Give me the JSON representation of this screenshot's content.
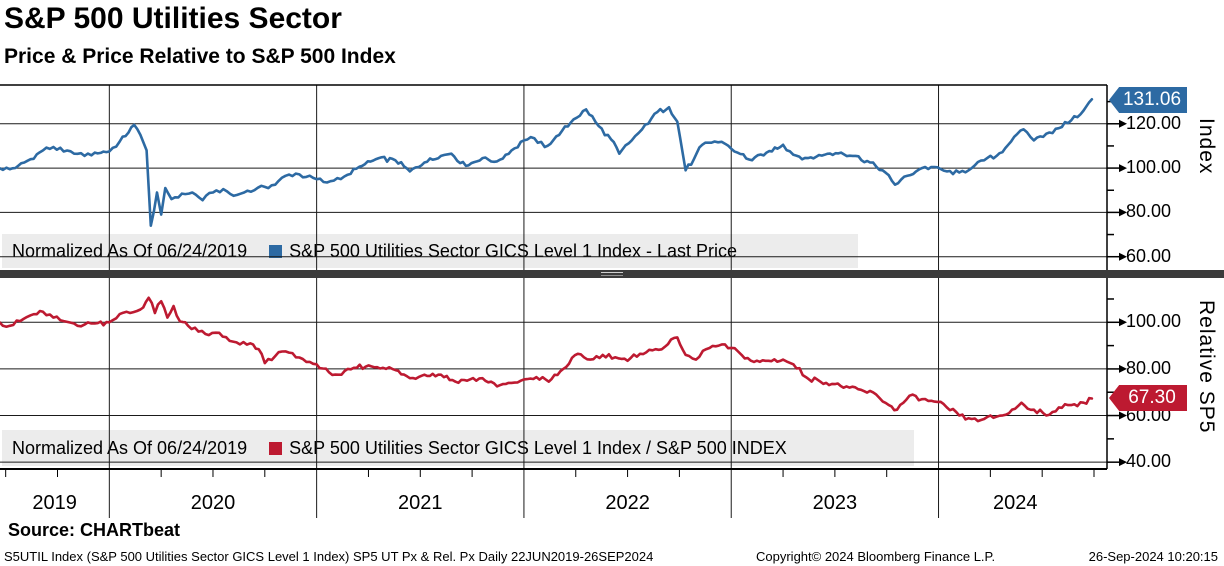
{
  "header": {
    "title": "S&P 500 Utilities Sector",
    "subtitle": "Price & Price Relative to S&P 500 Index"
  },
  "footer": {
    "source": "Source: CHARTbeat",
    "meta_left": "S5UTIL Index (S&P 500 Utilities Sector GICS Level 1 Index) SP5 UT Px & Rel. Px  Daily 22JUN2019-26SEP2024",
    "meta_center": "Copyright© 2024 Bloomberg Finance L.P.",
    "meta_right": "26-Sep-2024 10:20:15"
  },
  "chart_data": {
    "type": "line",
    "x_axis": {
      "start": "22JUN2019",
      "end": "26SEP2024",
      "tick_years": [
        2019,
        2020,
        2021,
        2022,
        2023,
        2024
      ],
      "grid_years": [
        2020,
        2021,
        2022,
        2023,
        2024
      ]
    },
    "panels": [
      {
        "name": "price",
        "axis_title": "Index",
        "legend_note": "Normalized As Of 06/24/2019",
        "series_label": "S&P 500 Utilities Sector GICS Level 1 Index - Last Price",
        "color": "#2d6aa3",
        "last_value": 131.06,
        "last_value_label": "131.06",
        "y_ticks": [
          60,
          80,
          100,
          120
        ],
        "ylim": [
          54,
          137.5
        ],
        "points": [
          [
            2019.47,
            100
          ],
          [
            2019.52,
            99.5
          ],
          [
            2019.56,
            101
          ],
          [
            2019.62,
            104
          ],
          [
            2019.68,
            108
          ],
          [
            2019.73,
            109.5
          ],
          [
            2019.78,
            107.5
          ],
          [
            2019.83,
            106.5
          ],
          [
            2019.88,
            105.5
          ],
          [
            2019.93,
            107
          ],
          [
            2020.0,
            107.5
          ],
          [
            2020.05,
            112
          ],
          [
            2020.12,
            119.5
          ],
          [
            2020.15,
            115
          ],
          [
            2020.18,
            108
          ],
          [
            2020.2,
            74
          ],
          [
            2020.23,
            89
          ],
          [
            2020.25,
            79
          ],
          [
            2020.27,
            91
          ],
          [
            2020.3,
            86
          ],
          [
            2020.35,
            88.5
          ],
          [
            2020.4,
            89
          ],
          [
            2020.45,
            85.5
          ],
          [
            2020.5,
            89
          ],
          [
            2020.55,
            90.5
          ],
          [
            2020.6,
            87.5
          ],
          [
            2020.65,
            89
          ],
          [
            2020.7,
            90
          ],
          [
            2020.75,
            91.5
          ],
          [
            2020.8,
            92.5
          ],
          [
            2020.85,
            96.5
          ],
          [
            2020.9,
            97.5
          ],
          [
            2020.95,
            96
          ],
          [
            2021.0,
            95
          ],
          [
            2021.05,
            93.5
          ],
          [
            2021.1,
            95.5
          ],
          [
            2021.15,
            97
          ],
          [
            2021.22,
            101
          ],
          [
            2021.3,
            104.5
          ],
          [
            2021.38,
            103.5
          ],
          [
            2021.45,
            98.5
          ],
          [
            2021.52,
            102.5
          ],
          [
            2021.6,
            105.5
          ],
          [
            2021.65,
            106.5
          ],
          [
            2021.72,
            101
          ],
          [
            2021.8,
            104.5
          ],
          [
            2021.87,
            103
          ],
          [
            2021.94,
            108
          ],
          [
            2022.0,
            112.5
          ],
          [
            2022.05,
            113.5
          ],
          [
            2022.1,
            109.5
          ],
          [
            2022.17,
            115
          ],
          [
            2022.24,
            122
          ],
          [
            2022.3,
            126.5
          ],
          [
            2022.36,
            119
          ],
          [
            2022.42,
            113
          ],
          [
            2022.46,
            106.5
          ],
          [
            2022.52,
            112.5
          ],
          [
            2022.57,
            117.5
          ],
          [
            2022.63,
            124.5
          ],
          [
            2022.7,
            127.5
          ],
          [
            2022.74,
            121
          ],
          [
            2022.78,
            99
          ],
          [
            2022.82,
            104
          ],
          [
            2022.86,
            110.5
          ],
          [
            2022.92,
            112
          ],
          [
            2022.97,
            111
          ],
          [
            2023.03,
            107
          ],
          [
            2023.1,
            103.5
          ],
          [
            2023.17,
            107
          ],
          [
            2023.25,
            110.5
          ],
          [
            2023.3,
            106
          ],
          [
            2023.37,
            104.5
          ],
          [
            2023.45,
            106
          ],
          [
            2023.53,
            107
          ],
          [
            2023.6,
            105.5
          ],
          [
            2023.67,
            102.5
          ],
          [
            2023.73,
            99
          ],
          [
            2023.79,
            92.5
          ],
          [
            2023.85,
            96.5
          ],
          [
            2023.92,
            100
          ],
          [
            2023.98,
            100.5
          ],
          [
            2024.04,
            98.5
          ],
          [
            2024.1,
            98
          ],
          [
            2024.16,
            100
          ],
          [
            2024.22,
            103.5
          ],
          [
            2024.28,
            105.5
          ],
          [
            2024.35,
            112
          ],
          [
            2024.41,
            117.5
          ],
          [
            2024.46,
            112.5
          ],
          [
            2024.52,
            115.5
          ],
          [
            2024.58,
            118
          ],
          [
            2024.64,
            121.5
          ],
          [
            2024.7,
            126
          ],
          [
            2024.74,
            131.06
          ]
        ]
      },
      {
        "name": "relative",
        "axis_title": "Relative SP5",
        "legend_note": "Normalized As Of 06/24/2019",
        "series_label": "S&P 500 Utilities Sector GICS Level 1 Index / S&P 500 INDEX",
        "color": "#bd1a31",
        "last_value": 67.3,
        "last_value_label": "67.30",
        "y_ticks": [
          40,
          60,
          80,
          100
        ],
        "ylim": [
          37.5,
          119
        ],
        "points": [
          [
            2019.47,
            100
          ],
          [
            2019.52,
            98.5
          ],
          [
            2019.57,
            100.5
          ],
          [
            2019.62,
            103
          ],
          [
            2019.68,
            104.5
          ],
          [
            2019.73,
            102
          ],
          [
            2019.78,
            100.5
          ],
          [
            2019.83,
            99.5
          ],
          [
            2019.88,
            99
          ],
          [
            2019.93,
            99.5
          ],
          [
            2020.0,
            100
          ],
          [
            2020.05,
            103.5
          ],
          [
            2020.1,
            104
          ],
          [
            2020.15,
            105.5
          ],
          [
            2020.19,
            110.5
          ],
          [
            2020.22,
            104
          ],
          [
            2020.25,
            109
          ],
          [
            2020.28,
            102
          ],
          [
            2020.31,
            107
          ],
          [
            2020.34,
            100.5
          ],
          [
            2020.38,
            98.5
          ],
          [
            2020.43,
            96
          ],
          [
            2020.48,
            94.5
          ],
          [
            2020.53,
            95.5
          ],
          [
            2020.58,
            92
          ],
          [
            2020.63,
            90.5
          ],
          [
            2020.68,
            91
          ],
          [
            2020.72,
            88.5
          ],
          [
            2020.75,
            82.5
          ],
          [
            2020.8,
            85.5
          ],
          [
            2020.85,
            87.5
          ],
          [
            2020.9,
            85
          ],
          [
            2020.95,
            83
          ],
          [
            2021.0,
            82
          ],
          [
            2021.06,
            78.5
          ],
          [
            2021.12,
            77.5
          ],
          [
            2021.18,
            80.5
          ],
          [
            2021.25,
            81.5
          ],
          [
            2021.32,
            80.5
          ],
          [
            2021.38,
            79.5
          ],
          [
            2021.45,
            76
          ],
          [
            2021.52,
            77.5
          ],
          [
            2021.6,
            77.5
          ],
          [
            2021.67,
            74.5
          ],
          [
            2021.74,
            75.5
          ],
          [
            2021.8,
            76
          ],
          [
            2021.87,
            72.5
          ],
          [
            2021.94,
            74
          ],
          [
            2022.0,
            75.5
          ],
          [
            2022.06,
            76.5
          ],
          [
            2022.12,
            74.5
          ],
          [
            2022.19,
            80
          ],
          [
            2022.26,
            86.5
          ],
          [
            2022.32,
            84
          ],
          [
            2022.38,
            86
          ],
          [
            2022.44,
            85
          ],
          [
            2022.5,
            83.5
          ],
          [
            2022.56,
            86.5
          ],
          [
            2022.62,
            88
          ],
          [
            2022.68,
            89.5
          ],
          [
            2022.74,
            93.5
          ],
          [
            2022.78,
            86
          ],
          [
            2022.83,
            84
          ],
          [
            2022.88,
            88.5
          ],
          [
            2022.94,
            90
          ],
          [
            2023.0,
            89
          ],
          [
            2023.05,
            86
          ],
          [
            2023.11,
            83
          ],
          [
            2023.18,
            83.5
          ],
          [
            2023.25,
            84
          ],
          [
            2023.3,
            82
          ],
          [
            2023.36,
            76.5
          ],
          [
            2023.43,
            74.5
          ],
          [
            2023.5,
            73.5
          ],
          [
            2023.57,
            72
          ],
          [
            2023.64,
            70.5
          ],
          [
            2023.7,
            69
          ],
          [
            2023.76,
            64.5
          ],
          [
            2023.8,
            62.5
          ],
          [
            2023.86,
            68.5
          ],
          [
            2023.92,
            67
          ],
          [
            2023.98,
            66
          ],
          [
            2024.04,
            63.5
          ],
          [
            2024.1,
            60
          ],
          [
            2024.16,
            58.5
          ],
          [
            2024.22,
            58.5
          ],
          [
            2024.28,
            59.5
          ],
          [
            2024.34,
            61
          ],
          [
            2024.4,
            65.5
          ],
          [
            2024.46,
            62.5
          ],
          [
            2024.52,
            60
          ],
          [
            2024.58,
            63.5
          ],
          [
            2024.64,
            64.5
          ],
          [
            2024.7,
            65.5
          ],
          [
            2024.74,
            67.3
          ]
        ]
      }
    ]
  }
}
